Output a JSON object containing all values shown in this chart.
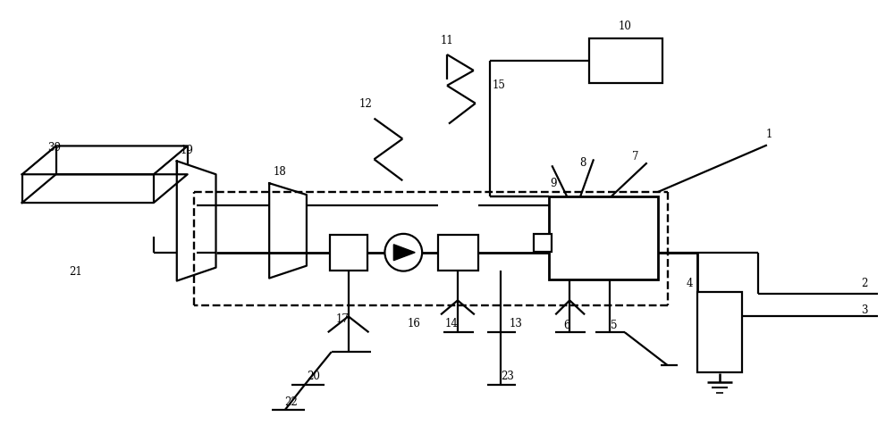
{
  "bg_color": "#ffffff",
  "lc": "#000000",
  "lw": 1.6,
  "lw2": 2.0,
  "fig_w": 10.0,
  "fig_h": 4.76,
  "dpi": 100
}
